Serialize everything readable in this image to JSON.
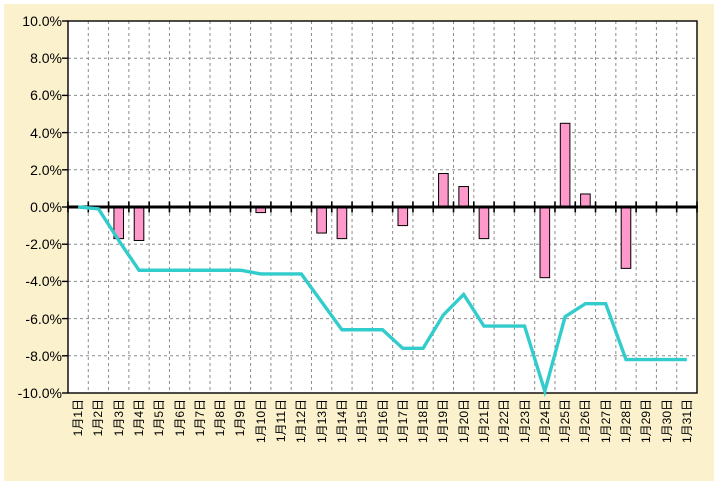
{
  "window": {
    "description": "spreadsheet combo chart, no title, no legend"
  },
  "chart": {
    "outer_background": "#FCF1CD",
    "page_border_color": "#FFFFFF",
    "plot_background": "#FFFFFF",
    "plot_border_color": "#000000",
    "axis_color": "#000000",
    "grid_color": "#8C8C8C",
    "bar_color": "#FF99CC",
    "bar_border_color": "#000000",
    "line_color": "#33CCCC",
    "text_color": "#000000"
  },
  "chart_data": {
    "type": "bar",
    "subtype": "bar+line combo",
    "title": "",
    "xlabel": "",
    "ylabel": "",
    "grid": true,
    "legend": "none",
    "ylim": [
      -10,
      10
    ],
    "ytick_step": 2,
    "ytick_labels": [
      "10.0%",
      "8.0%",
      "6.0%",
      "4.0%",
      "2.0%",
      "0.0%",
      "-2.0%",
      "-4.0%",
      "-6.0%",
      "-8.0%",
      "-10.0%"
    ],
    "categories": [
      "1月1日",
      "1月2日",
      "1月3日",
      "1月4日",
      "1月5日",
      "1月6日",
      "1月7日",
      "1月8日",
      "1月9日",
      "1月10日",
      "1月11日",
      "1月12日",
      "1月13日",
      "1月14日",
      "1月15日",
      "1月16日",
      "1月17日",
      "1月18日",
      "1月19日",
      "1月20日",
      "1月21日",
      "1月22日",
      "1月23日",
      "1月24日",
      "1月25日",
      "1月26日",
      "1月27日",
      "1月28日",
      "1月29日",
      "1月30日",
      "1月31日"
    ],
    "series": [
      {
        "name": "daily-change-bars",
        "type": "bar",
        "unit": "%",
        "values": [
          null,
          null,
          -1.7,
          -1.8,
          null,
          null,
          null,
          null,
          null,
          -0.3,
          null,
          null,
          -1.4,
          -1.7,
          null,
          null,
          -1.0,
          null,
          1.8,
          1.1,
          -1.7,
          null,
          null,
          -3.8,
          4.5,
          0.7,
          null,
          -3.3,
          null,
          null,
          null
        ]
      },
      {
        "name": "cumulative-line",
        "type": "line",
        "unit": "%",
        "values": [
          0.0,
          -0.1,
          -1.8,
          -3.4,
          -3.4,
          -3.4,
          -3.4,
          -3.4,
          -3.4,
          -3.6,
          -3.6,
          -3.6,
          -5.1,
          -6.6,
          -6.6,
          -6.6,
          -7.6,
          -7.6,
          -5.8,
          -4.7,
          -6.4,
          -6.4,
          -6.4,
          -9.9,
          -5.9,
          -5.2,
          -5.2,
          -8.2,
          -8.2,
          -8.2,
          -8.2
        ]
      }
    ]
  }
}
